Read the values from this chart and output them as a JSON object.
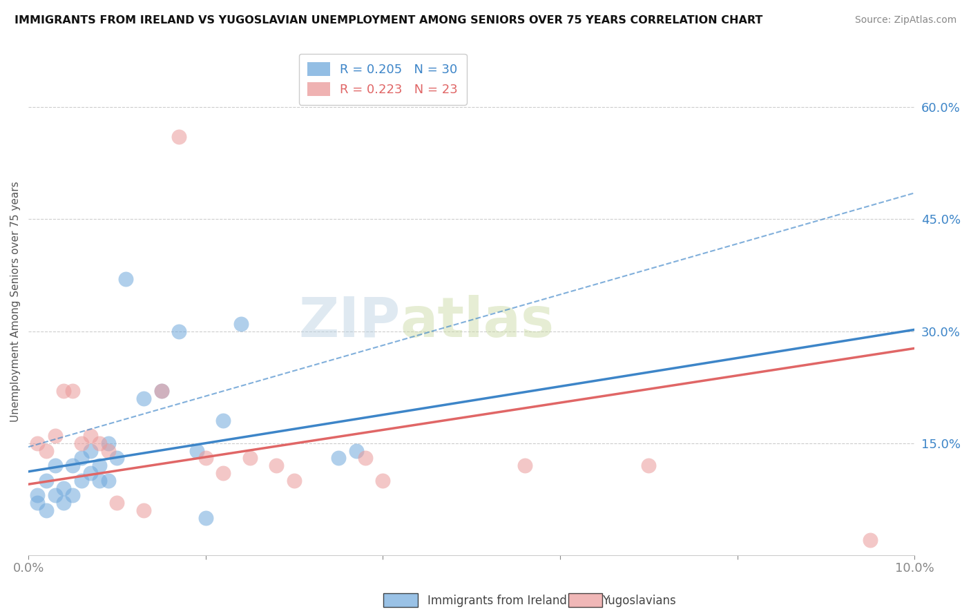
{
  "title": "IMMIGRANTS FROM IRELAND VS YUGOSLAVIAN UNEMPLOYMENT AMONG SENIORS OVER 75 YEARS CORRELATION CHART",
  "source": "Source: ZipAtlas.com",
  "ylabel": "Unemployment Among Seniors over 75 years",
  "xlim": [
    0.0,
    0.1
  ],
  "ylim": [
    0.0,
    0.68
  ],
  "xticks": [
    0.0,
    0.02,
    0.04,
    0.06,
    0.08,
    0.1
  ],
  "xticklabels": [
    "0.0%",
    "",
    "",
    "",
    "",
    "10.0%"
  ],
  "yticks_right": [
    0.15,
    0.3,
    0.45,
    0.6
  ],
  "ytickslabels_right": [
    "15.0%",
    "30.0%",
    "45.0%",
    "60.0%"
  ],
  "blue_R": 0.205,
  "blue_N": 30,
  "pink_R": 0.223,
  "pink_N": 23,
  "blue_color": "#6fa8dc",
  "pink_color": "#ea9999",
  "blue_line_color": "#3d85c8",
  "pink_line_color": "#e06666",
  "blue_line_intercept": 0.112,
  "blue_line_slope": 1.9,
  "pink_line_intercept": 0.095,
  "pink_line_slope": 1.82,
  "dash_line_intercept": 0.145,
  "dash_line_slope": 3.4,
  "blue_scatter_x": [
    0.001,
    0.001,
    0.002,
    0.002,
    0.003,
    0.003,
    0.004,
    0.004,
    0.005,
    0.005,
    0.006,
    0.006,
    0.007,
    0.007,
    0.008,
    0.008,
    0.009,
    0.009,
    0.01,
    0.011,
    0.013,
    0.015,
    0.017,
    0.019,
    0.02,
    0.022,
    0.024,
    0.035,
    0.037,
    0.048
  ],
  "blue_scatter_y": [
    0.08,
    0.07,
    0.06,
    0.1,
    0.08,
    0.12,
    0.07,
    0.09,
    0.08,
    0.12,
    0.1,
    0.13,
    0.11,
    0.14,
    0.12,
    0.1,
    0.1,
    0.15,
    0.13,
    0.37,
    0.21,
    0.22,
    0.3,
    0.14,
    0.05,
    0.18,
    0.31,
    0.13,
    0.14,
    0.66
  ],
  "pink_scatter_x": [
    0.001,
    0.002,
    0.003,
    0.004,
    0.005,
    0.006,
    0.007,
    0.008,
    0.009,
    0.01,
    0.013,
    0.015,
    0.017,
    0.02,
    0.022,
    0.025,
    0.028,
    0.03,
    0.038,
    0.04,
    0.056,
    0.07,
    0.095
  ],
  "pink_scatter_y": [
    0.15,
    0.14,
    0.16,
    0.22,
    0.22,
    0.15,
    0.16,
    0.15,
    0.14,
    0.07,
    0.06,
    0.22,
    0.56,
    0.13,
    0.11,
    0.13,
    0.12,
    0.1,
    0.13,
    0.1,
    0.12,
    0.12,
    0.02
  ],
  "watermark_zip": "ZIP",
  "watermark_atlas": "atlas",
  "legend_label_blue": "Immigrants from Ireland",
  "legend_label_pink": "Yugoslavians"
}
